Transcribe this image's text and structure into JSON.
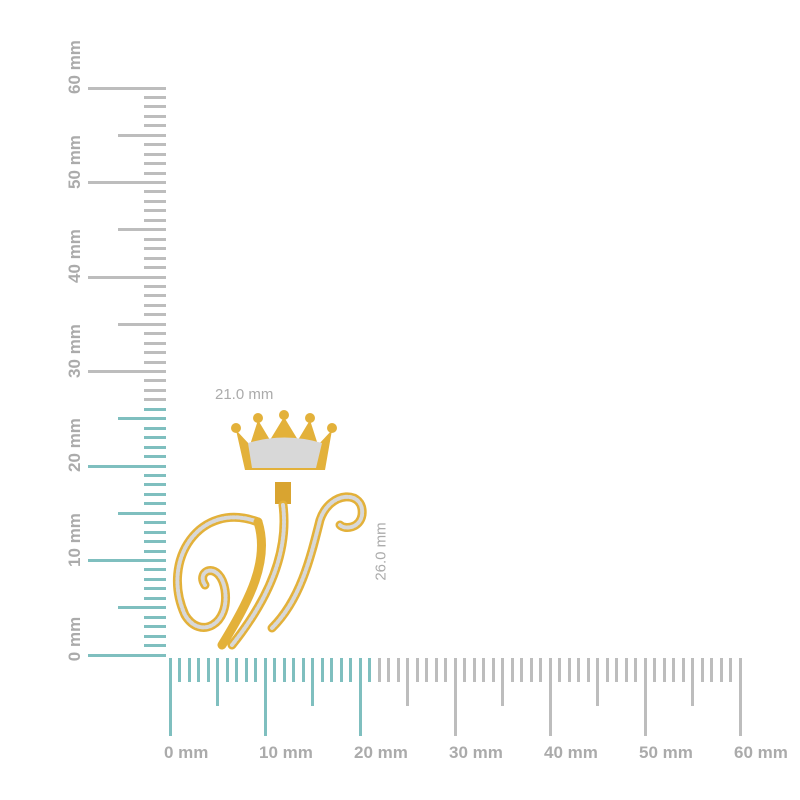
{
  "colors": {
    "measured": "#7fbfbf",
    "ruler": "#bdbdbd",
    "label": "#ababab",
    "gold": "#e3b13a",
    "stone": "#dcdcdc"
  },
  "horizontal_ruler": {
    "labels": [
      "0 mm",
      "10 mm",
      "20 mm",
      "30 mm",
      "40 mm",
      "50 mm",
      "60 mm"
    ],
    "max_mm": 60,
    "highlight_mm": 21
  },
  "vertical_ruler": {
    "labels": [
      "0 mm",
      "10 mm",
      "20 mm",
      "30 mm",
      "40 mm",
      "50 mm",
      "60 mm"
    ],
    "max_mm": 60,
    "highlight_mm": 26
  },
  "dimensions": {
    "width": "21.0 mm",
    "height": "26.0 mm"
  },
  "product": {
    "description_icon": "crowned-letter-w-pendant"
  }
}
